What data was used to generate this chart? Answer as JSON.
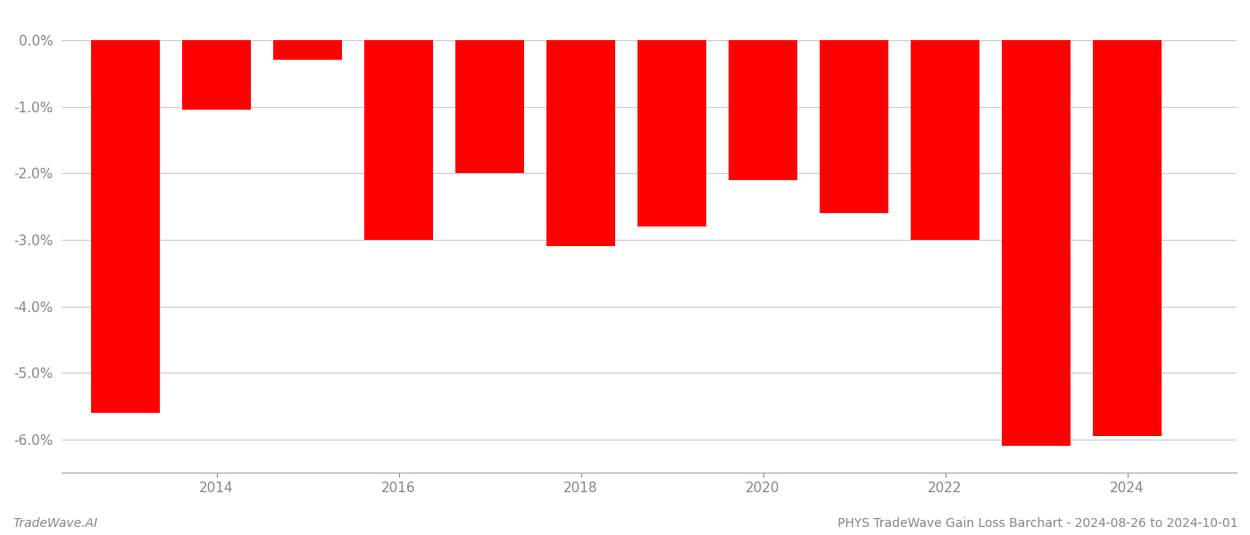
{
  "years": [
    2013,
    2014,
    2015,
    2016,
    2017,
    2018,
    2019,
    2020,
    2021,
    2022,
    2023,
    2024
  ],
  "values": [
    -5.6,
    -1.05,
    -0.3,
    -3.0,
    -2.0,
    -3.1,
    -2.8,
    -2.1,
    -2.6,
    -3.0,
    -6.1,
    -5.95
  ],
  "bar_color": "#ff0000",
  "title": "PHYS TradeWave Gain Loss Barchart - 2024-08-26 to 2024-10-01",
  "watermark": "TradeWave.AI",
  "ylim_min": -6.5,
  "ylim_max": 0.4,
  "yticks": [
    0.0,
    -1.0,
    -2.0,
    -3.0,
    -4.0,
    -5.0,
    -6.0
  ],
  "xticks": [
    2014,
    2016,
    2018,
    2020,
    2022,
    2024
  ],
  "xlim_min": 2012.3,
  "xlim_max": 2025.2,
  "background_color": "#ffffff",
  "grid_color": "#cccccc",
  "bar_width": 0.75,
  "tick_color": "#888888",
  "label_fontsize": 11
}
